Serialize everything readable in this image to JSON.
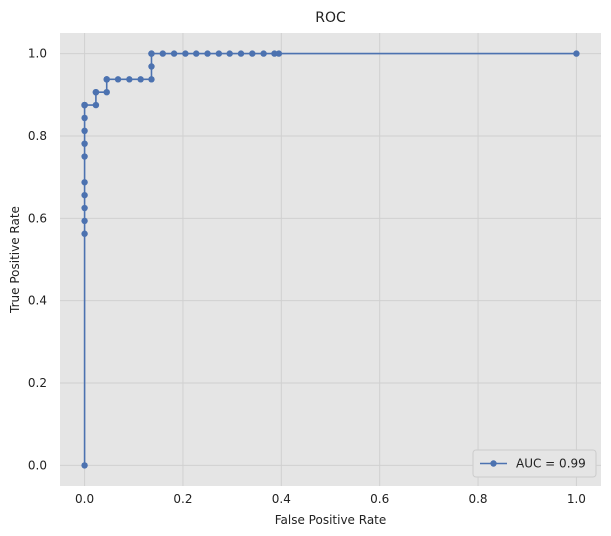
{
  "chart_data": {
    "type": "line",
    "title": "ROC",
    "xlabel": "False Positive Rate",
    "ylabel": "True Positive Rate",
    "xlim": [
      -0.05,
      1.05
    ],
    "ylim": [
      -0.05,
      1.05
    ],
    "xticks": [
      0.0,
      0.2,
      0.4,
      0.6,
      0.8,
      1.0
    ],
    "xtick_labels": [
      "0.0",
      "0.2",
      "0.4",
      "0.6",
      "0.8",
      "1.0"
    ],
    "yticks": [
      0.0,
      0.2,
      0.4,
      0.6,
      0.8,
      1.0
    ],
    "ytick_labels": [
      "0.0",
      "0.2",
      "0.4",
      "0.6",
      "0.8",
      "1.0"
    ],
    "grid": true,
    "legend_position": "lower-right",
    "colors": {
      "series": "#4c72b0",
      "plot_background": "#e5e5e5",
      "grid": "#d0d0d0"
    },
    "series": [
      {
        "name": "AUC = 0.99",
        "marker": "circle",
        "x": [
          0.0,
          0.0,
          0.0,
          0.0,
          0.0,
          0.0,
          0.0,
          0.0,
          0.0,
          0.0,
          0.0,
          0.0,
          0.0,
          0.023,
          0.023,
          0.023,
          0.045,
          0.045,
          0.045,
          0.068,
          0.091,
          0.114,
          0.136,
          0.136,
          0.136,
          0.136,
          0.159,
          0.182,
          0.205,
          0.227,
          0.25,
          0.273,
          0.295,
          0.318,
          0.341,
          0.364,
          0.386,
          0.395,
          1.0
        ],
        "y": [
          0.0,
          0.5625,
          0.59375,
          0.625,
          0.65625,
          0.6875,
          0.75,
          0.78125,
          0.8125,
          0.84375,
          0.875,
          0.875,
          0.875,
          0.875,
          0.90625,
          0.90625,
          0.90625,
          0.9375,
          0.9375,
          0.9375,
          0.9375,
          0.9375,
          0.9375,
          0.96875,
          1.0,
          1.0,
          1.0,
          1.0,
          1.0,
          1.0,
          1.0,
          1.0,
          1.0,
          1.0,
          1.0,
          1.0,
          1.0,
          1.0,
          1.0
        ]
      }
    ]
  }
}
